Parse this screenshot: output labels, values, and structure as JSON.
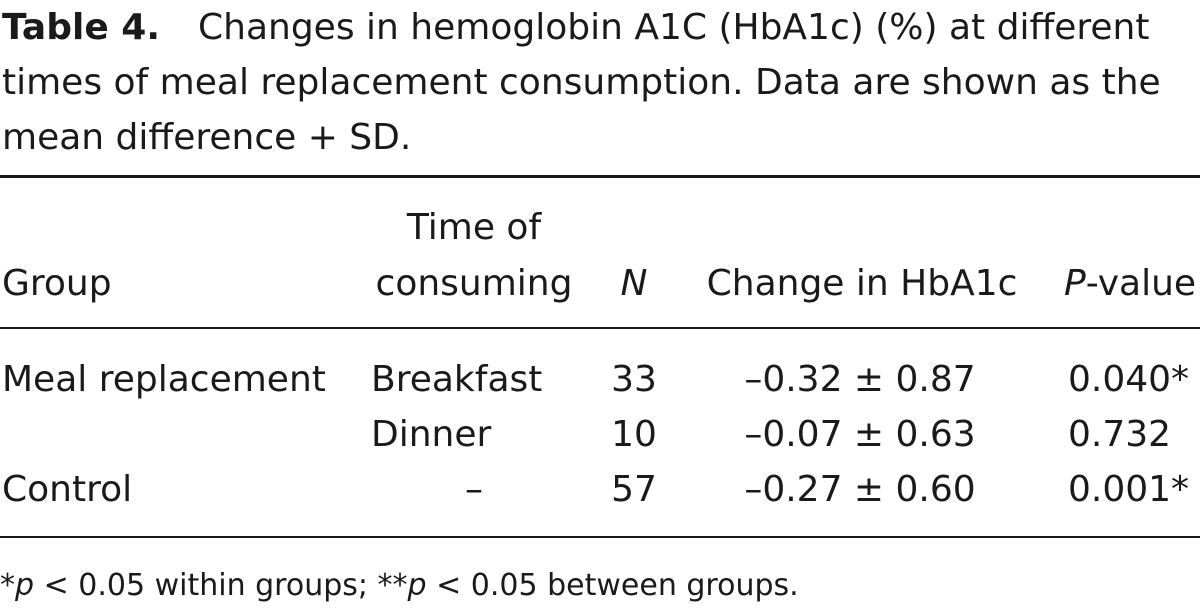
{
  "caption": {
    "label": "Table 4.",
    "line1": "Changes in hemoglobin A1C (HbA1c) (%) at different",
    "line2": "times of meal replacement consumption. Data are shown as the",
    "line3": "mean difference + SD."
  },
  "table": {
    "headers": {
      "group": "Group",
      "time_line1": "Time of",
      "time_line2": "consuming",
      "n": "N",
      "change": "Change in HbA1c",
      "p_italic": "P",
      "p_rest": "-value"
    },
    "rows": [
      {
        "group": "Meal replacement",
        "time": "Breakfast",
        "n": "33",
        "change": "–0.32 ± 0.87",
        "p": "0.040*"
      },
      {
        "group": "",
        "time": "Dinner",
        "n": "10",
        "change": "–0.07 ± 0.63",
        "p": "0.732"
      },
      {
        "group": "Control",
        "time": "–",
        "n": "57",
        "change": "–0.27 ± 0.60",
        "p": "0.001*"
      }
    ]
  },
  "footnote": {
    "star1": "*",
    "p1": "p",
    "text1": " < 0.05 within groups; ",
    "star2": "**",
    "p2": "p",
    "text2": " < 0.05 between groups."
  }
}
